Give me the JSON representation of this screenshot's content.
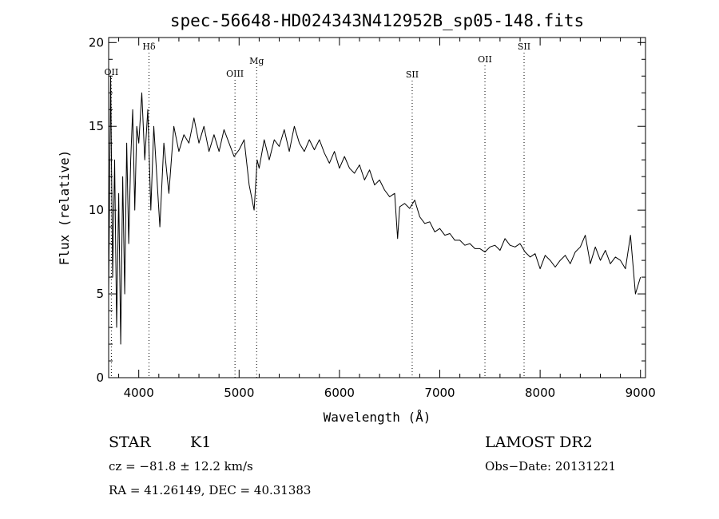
{
  "chart_data": {
    "type": "line",
    "title": "spec-56648-HD024343N412952B_sp05-148.fits",
    "xlabel": "Wavelength (Å)",
    "ylabel": "Flux (relative)",
    "xlim": [
      3700,
      9050
    ],
    "ylim": [
      0,
      20.3
    ],
    "x_ticks": [
      4000,
      5000,
      6000,
      7000,
      8000,
      9000
    ],
    "y_ticks": [
      0,
      5,
      10,
      15,
      20
    ],
    "grid": false,
    "spectral_lines": [
      {
        "label": "OII",
        "x": 3727
      },
      {
        "label": "Hδ",
        "x": 4102
      },
      {
        "label": "OIII",
        "x": 4959
      },
      {
        "label": "Mg",
        "x": 5175
      },
      {
        "label": "SII",
        "x": 6725
      },
      {
        "label": "OII",
        "x": 7450
      },
      {
        "label": "SII",
        "x": 7840
      }
    ],
    "series": [
      {
        "x": [
          3700,
          3720,
          3740,
          3760,
          3780,
          3800,
          3820,
          3840,
          3860,
          3880,
          3900,
          3920,
          3940,
          3960,
          3980,
          4000,
          4030,
          4060,
          4090,
          4120,
          4150,
          4180,
          4210,
          4250,
          4300,
          4350,
          4400,
          4450,
          4500,
          4550,
          4600,
          4650,
          4700,
          4750,
          4800,
          4850,
          4900,
          4950,
          5000,
          5050,
          5100,
          5150,
          5180,
          5200,
          5250,
          5300,
          5350,
          5400,
          5450,
          5500,
          5550,
          5600,
          5650,
          5700,
          5750,
          5800,
          5850,
          5900,
          5950,
          6000,
          6050,
          6100,
          6150,
          6200,
          6250,
          6300,
          6350,
          6400,
          6450,
          6500,
          6550,
          6580,
          6600,
          6650,
          6700,
          6750,
          6800,
          6850,
          6900,
          6950,
          7000,
          7050,
          7100,
          7150,
          7200,
          7250,
          7300,
          7350,
          7400,
          7450,
          7500,
          7550,
          7600,
          7650,
          7700,
          7750,
          7800,
          7850,
          7900,
          7950,
          8000,
          8050,
          8100,
          8150,
          8200,
          8250,
          8300,
          8350,
          8400,
          8450,
          8500,
          8550,
          8600,
          8650,
          8700,
          8750,
          8800,
          8850,
          8900,
          8950,
          9000
        ],
        "y": [
          5,
          18,
          6,
          13,
          3,
          11,
          2,
          12,
          5,
          14,
          8,
          13,
          16,
          10,
          15,
          14,
          17,
          13,
          16,
          10,
          15,
          12,
          9,
          14,
          11,
          15,
          13.5,
          14.5,
          14,
          15.5,
          14,
          15,
          13.5,
          14.5,
          13.5,
          14.8,
          14,
          13.2,
          13.6,
          14.2,
          11.5,
          10,
          13,
          12.5,
          14.2,
          13,
          14.2,
          13.8,
          14.8,
          13.5,
          15,
          14,
          13.5,
          14.2,
          13.6,
          14.2,
          13.4,
          12.8,
          13.5,
          12.5,
          13.2,
          12.5,
          12.2,
          12.7,
          11.8,
          12.4,
          11.5,
          11.8,
          11.2,
          10.8,
          11,
          8.3,
          10.2,
          10.4,
          10.1,
          10.6,
          9.6,
          9.2,
          9.3,
          8.7,
          8.9,
          8.5,
          8.6,
          8.2,
          8.2,
          7.9,
          8.0,
          7.7,
          7.7,
          7.5,
          7.8,
          7.9,
          7.6,
          8.3,
          7.9,
          7.8,
          8.0,
          7.5,
          7.2,
          7.4,
          6.5,
          7.3,
          7.0,
          6.6,
          7.0,
          7.3,
          6.8,
          7.5,
          7.8,
          8.5,
          6.8,
          7.8,
          7.0,
          7.6,
          6.8,
          7.2,
          7.0,
          6.5,
          8.5,
          5.0,
          6.0
        ]
      }
    ]
  },
  "info": {
    "object_class": "STAR",
    "subclass": "K1",
    "cz": "cz = −81.8 ± 12.2 km/s",
    "coords": "RA =  41.26149, DEC =  40.31383",
    "survey": "LAMOST DR2",
    "obs_date": "Obs−Date: 20131221"
  }
}
